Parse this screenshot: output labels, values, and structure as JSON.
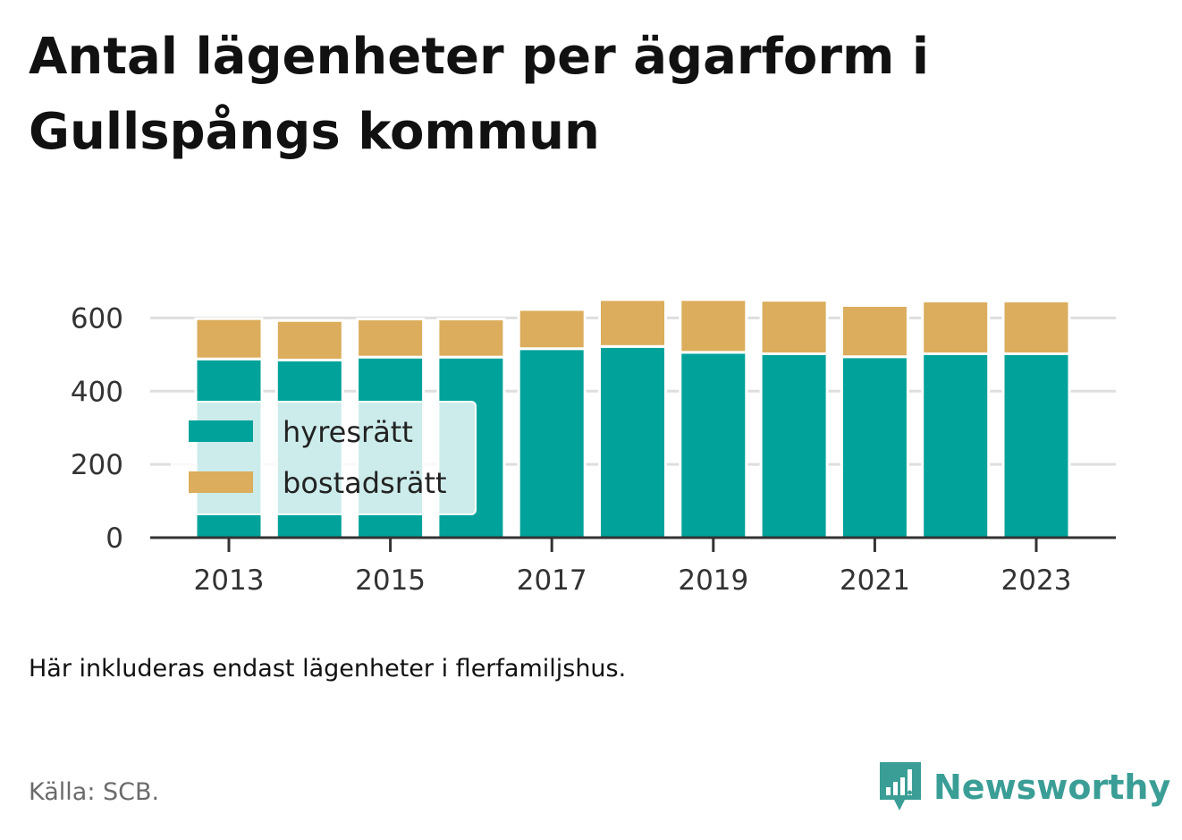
{
  "title": "Antal lägenheter per ägarform i Gullspångs kommun",
  "note": "Här inkluderas endast lägenheter i flerfamiljshus.",
  "source": "Källa: SCB.",
  "brand": {
    "name": "Newsworthy",
    "icon": "newsworthy-logo-icon",
    "color": "#3a9e96"
  },
  "colors": {
    "hyresratt": "#00a29a",
    "bostadsratt": "#dbad5c",
    "grid": "#dedede",
    "axis": "#333333"
  },
  "chart_data": {
    "type": "bar",
    "stacked": true,
    "categories": [
      "2013",
      "2014",
      "2015",
      "2016",
      "2017",
      "2018",
      "2019",
      "2020",
      "2021",
      "2022",
      "2023"
    ],
    "x_tick_labels": [
      "2013",
      "2015",
      "2017",
      "2019",
      "2021",
      "2023"
    ],
    "series": [
      {
        "name": "hyresrätt",
        "values": [
          488,
          485,
          493,
          493,
          516,
          522,
          506,
          502,
          494,
          502,
          502
        ]
      },
      {
        "name": "bostadsrätt",
        "values": [
          110,
          108,
          104,
          104,
          107,
          128,
          144,
          146,
          140,
          144,
          144
        ]
      }
    ],
    "y_ticks": [
      0,
      200,
      400,
      600
    ],
    "ylim": [
      0,
      640
    ],
    "grid": true,
    "legend": {
      "position": "bottom-left",
      "entries": [
        "hyresrätt",
        "bostadsrätt"
      ]
    }
  }
}
